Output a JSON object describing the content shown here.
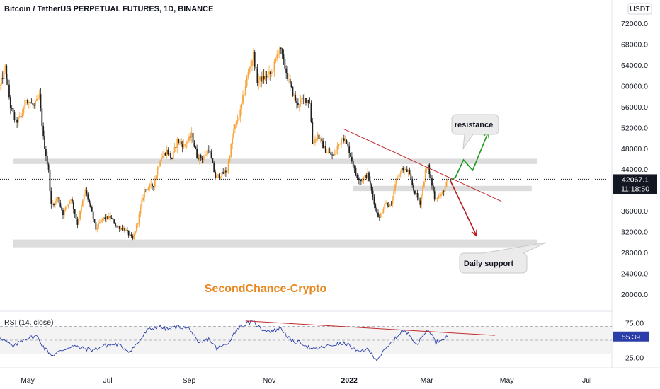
{
  "chart_data": {
    "type": "candlestick",
    "title": "Bitcoin / TetherUS PERPETUAL FUTURES, 1D, BINANCE",
    "currency": "USDT",
    "y_ticks": [
      "72000.0",
      "68000.0",
      "64000.0",
      "60000.0",
      "56000.0",
      "52000.0",
      "48000.0",
      "44000.0",
      "40000.0",
      "36000.0",
      "32000.0",
      "28000.0",
      "24000.0",
      "20000.0"
    ],
    "ylim": [
      17000,
      73500
    ],
    "current_price": "42067.1",
    "countdown": "11:18:50",
    "x_ticks": [
      {
        "label": "May",
        "date": "2021-05-01"
      },
      {
        "label": "Jul",
        "date": "2021-07-01"
      },
      {
        "label": "Sep",
        "date": "2021-09-01"
      },
      {
        "label": "Nov",
        "date": "2021-11-01"
      },
      {
        "label": "2022",
        "date": "2022-01-01"
      },
      {
        "label": "Mar",
        "date": "2022-03-01"
      },
      {
        "label": "May",
        "date": "2022-05-01"
      },
      {
        "label": "Jul",
        "date": "2022-07-01"
      }
    ],
    "xlim": [
      "2021-04-10",
      "2022-07-20"
    ],
    "last_date": "2022-03-17",
    "price_path": [
      [
        "2021-04-10",
        60000
      ],
      [
        "2021-04-14",
        63500
      ],
      [
        "2021-04-18",
        56000
      ],
      [
        "2021-04-22",
        53000
      ],
      [
        "2021-04-26",
        54000
      ],
      [
        "2021-04-30",
        57500
      ],
      [
        "2021-05-06",
        56000
      ],
      [
        "2021-05-10",
        58000
      ],
      [
        "2021-05-13",
        50000
      ],
      [
        "2021-05-17",
        43500
      ],
      [
        "2021-05-19",
        37000
      ],
      [
        "2021-05-21",
        37500
      ],
      [
        "2021-05-24",
        38500
      ],
      [
        "2021-05-28",
        35500
      ],
      [
        "2021-06-03",
        38500
      ],
      [
        "2021-06-08",
        33500
      ],
      [
        "2021-06-14",
        40000
      ],
      [
        "2021-06-18",
        36500
      ],
      [
        "2021-06-22",
        32500
      ],
      [
        "2021-06-27",
        34500
      ],
      [
        "2021-07-03",
        34800
      ],
      [
        "2021-07-08",
        33000
      ],
      [
        "2021-07-14",
        32500
      ],
      [
        "2021-07-20",
        30500
      ],
      [
        "2021-07-24",
        34000
      ],
      [
        "2021-07-29",
        40000
      ],
      [
        "2021-08-05",
        41000
      ],
      [
        "2021-08-10",
        46000
      ],
      [
        "2021-08-15",
        47500
      ],
      [
        "2021-08-19",
        46000
      ],
      [
        "2021-08-23",
        49500
      ],
      [
        "2021-08-28",
        48500
      ],
      [
        "2021-09-03",
        50500
      ],
      [
        "2021-09-07",
        46500
      ],
      [
        "2021-09-12",
        46000
      ],
      [
        "2021-09-16",
        48000
      ],
      [
        "2021-09-21",
        42500
      ],
      [
        "2021-09-26",
        43000
      ],
      [
        "2021-09-30",
        43800
      ],
      [
        "2021-10-05",
        51500
      ],
      [
        "2021-10-10",
        55000
      ],
      [
        "2021-10-15",
        61500
      ],
      [
        "2021-10-20",
        66000
      ],
      [
        "2021-10-23",
        61000
      ],
      [
        "2021-10-28",
        61500
      ],
      [
        "2021-11-03",
        62500
      ],
      [
        "2021-11-09",
        67500
      ],
      [
        "2021-11-12",
        64500
      ],
      [
        "2021-11-17",
        60000
      ],
      [
        "2021-11-22",
        56500
      ],
      [
        "2021-11-28",
        57500
      ],
      [
        "2021-12-02",
        57000
      ],
      [
        "2021-12-04",
        49000
      ],
      [
        "2021-12-08",
        50500
      ],
      [
        "2021-12-14",
        47500
      ],
      [
        "2021-12-20",
        46500
      ],
      [
        "2021-12-27",
        50500
      ],
      [
        "2022-01-01",
        47500
      ],
      [
        "2022-01-06",
        43000
      ],
      [
        "2022-01-10",
        41800
      ],
      [
        "2022-01-15",
        43000
      ],
      [
        "2022-01-21",
        36500
      ],
      [
        "2022-01-24",
        34500
      ],
      [
        "2022-01-28",
        37500
      ],
      [
        "2022-02-02",
        37000
      ],
      [
        "2022-02-06",
        42000
      ],
      [
        "2022-02-10",
        44000
      ],
      [
        "2022-02-15",
        43500
      ],
      [
        "2022-02-19",
        40000
      ],
      [
        "2022-02-24",
        37500
      ],
      [
        "2022-02-28",
        43500
      ],
      [
        "2022-03-02",
        44500
      ],
      [
        "2022-03-07",
        38500
      ],
      [
        "2022-03-12",
        39000
      ],
      [
        "2022-03-15",
        40500
      ],
      [
        "2022-03-17",
        41800
      ]
    ],
    "rsi": {
      "label": "RSI (14, close)",
      "y_ticks": [
        "75.00",
        "25.00"
      ],
      "ylim": [
        12,
        88
      ],
      "upper_band": 70,
      "lower_band": 30,
      "mid_line": 50,
      "current": "55.39",
      "path": [
        [
          "2021-04-10",
          55
        ],
        [
          "2021-04-20",
          40
        ],
        [
          "2021-04-28",
          52
        ],
        [
          "2021-05-08",
          56
        ],
        [
          "2021-05-14",
          38
        ],
        [
          "2021-05-20",
          28
        ],
        [
          "2021-05-28",
          36
        ],
        [
          "2021-06-04",
          42
        ],
        [
          "2021-06-12",
          38
        ],
        [
          "2021-06-20",
          36
        ],
        [
          "2021-06-28",
          42
        ],
        [
          "2021-07-08",
          44
        ],
        [
          "2021-07-18",
          34
        ],
        [
          "2021-07-25",
          48
        ],
        [
          "2021-07-31",
          64
        ],
        [
          "2021-08-08",
          70
        ],
        [
          "2021-08-16",
          66
        ],
        [
          "2021-08-24",
          70
        ],
        [
          "2021-09-02",
          66
        ],
        [
          "2021-09-08",
          44
        ],
        [
          "2021-09-16",
          52
        ],
        [
          "2021-09-22",
          38
        ],
        [
          "2021-09-30",
          44
        ],
        [
          "2021-10-08",
          68
        ],
        [
          "2021-10-15",
          74
        ],
        [
          "2021-10-20",
          77
        ],
        [
          "2021-10-26",
          66
        ],
        [
          "2021-11-04",
          63
        ],
        [
          "2021-11-10",
          68
        ],
        [
          "2021-11-18",
          48
        ],
        [
          "2021-11-26",
          46
        ],
        [
          "2021-12-04",
          36
        ],
        [
          "2021-12-12",
          40
        ],
        [
          "2021-12-22",
          44
        ],
        [
          "2021-12-30",
          45
        ],
        [
          "2022-01-08",
          32
        ],
        [
          "2022-01-14",
          38
        ],
        [
          "2022-01-22",
          22
        ],
        [
          "2022-01-28",
          35
        ],
        [
          "2022-02-06",
          54
        ],
        [
          "2022-02-10",
          64
        ],
        [
          "2022-02-16",
          58
        ],
        [
          "2022-02-22",
          44
        ],
        [
          "2022-02-28",
          62
        ],
        [
          "2022-03-03",
          65
        ],
        [
          "2022-03-08",
          46
        ],
        [
          "2022-03-12",
          52
        ],
        [
          "2022-03-17",
          55.4
        ]
      ]
    },
    "annotations": {
      "resistance_label": "resistance",
      "support_label": "Daily support",
      "watermark": "SecondChance-Crypto",
      "resistance_line": [
        [
          "2021-12-27",
          51800
        ],
        [
          "2022-04-27",
          37800
        ]
      ],
      "rsi_trendline": [
        [
          "2021-10-14",
          78
        ],
        [
          "2022-04-22",
          57
        ]
      ],
      "zones": [
        {
          "from": "2021-04-20",
          "to": "2022-05-24",
          "low": 45000,
          "high": 46000
        },
        {
          "from": "2022-01-04",
          "to": "2022-05-20",
          "low": 39800,
          "high": 40800
        },
        {
          "from": "2021-04-20",
          "to": "2022-05-24",
          "low": 29000,
          "high": 30500
        }
      ],
      "bull_path": [
        [
          "2022-03-19",
          41800
        ],
        [
          "2022-03-23",
          42500
        ],
        [
          "2022-03-29",
          45800
        ],
        [
          "2022-04-05",
          43800
        ],
        [
          "2022-04-17",
          51200
        ]
      ],
      "bear_path": [
        [
          "2022-03-19",
          41800
        ],
        [
          "2022-04-08",
          31200
        ]
      ],
      "colors": {
        "bull": "#1e9a1e",
        "bear": "#b81b23",
        "line": "#c22b2f",
        "candle_up": "#f7a43a",
        "candle_down": "#1f1f1f",
        "rsi_line": "#2c3fa8",
        "zone": "#dcdcdc"
      }
    }
  }
}
